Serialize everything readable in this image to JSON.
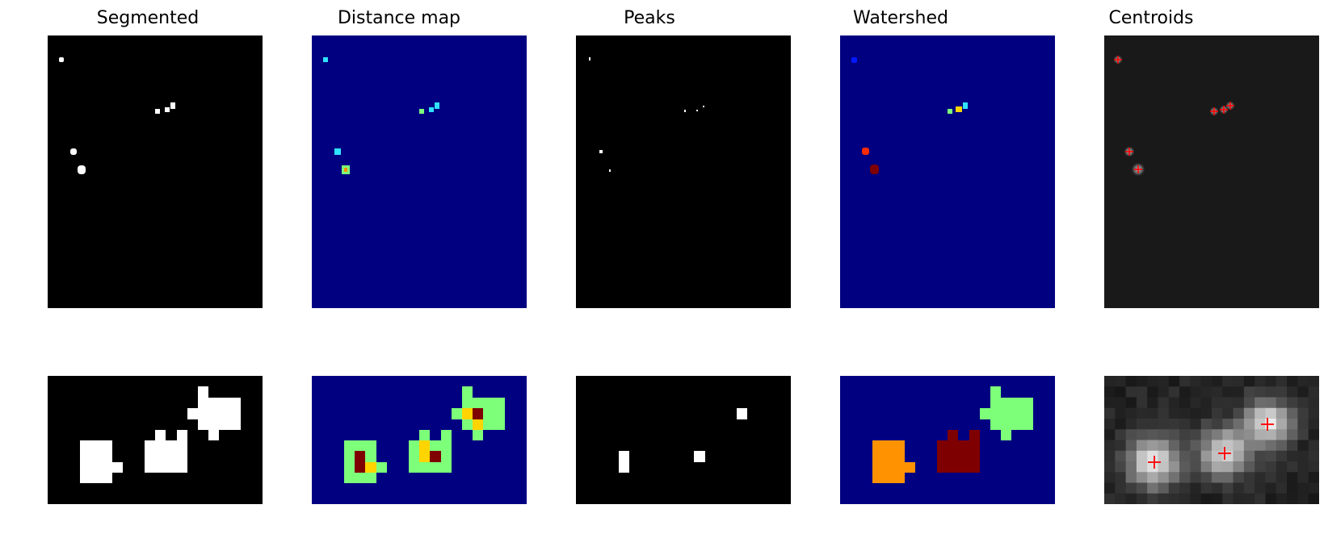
{
  "figure": {
    "titles": [
      "Segmented",
      "Distance map",
      "Peaks",
      "Watershed",
      "Centroids"
    ]
  },
  "colors": {
    "black": "#000000",
    "white": "#ffffff",
    "jet_navy": "#000080",
    "jet_cyan": "#2fe3ff",
    "jet_green": "#7dff7a",
    "jet_yellow": "#ffd400",
    "jet_orange": "#ff9200",
    "jet_red": "#ff2a00",
    "jet_darkred": "#7f0000",
    "jet_blue": "#0018ff",
    "gray_bg": "#191919",
    "marker_red": "#ff0000"
  },
  "icons": {
    "centroid_marker": "plus-marker"
  }
}
